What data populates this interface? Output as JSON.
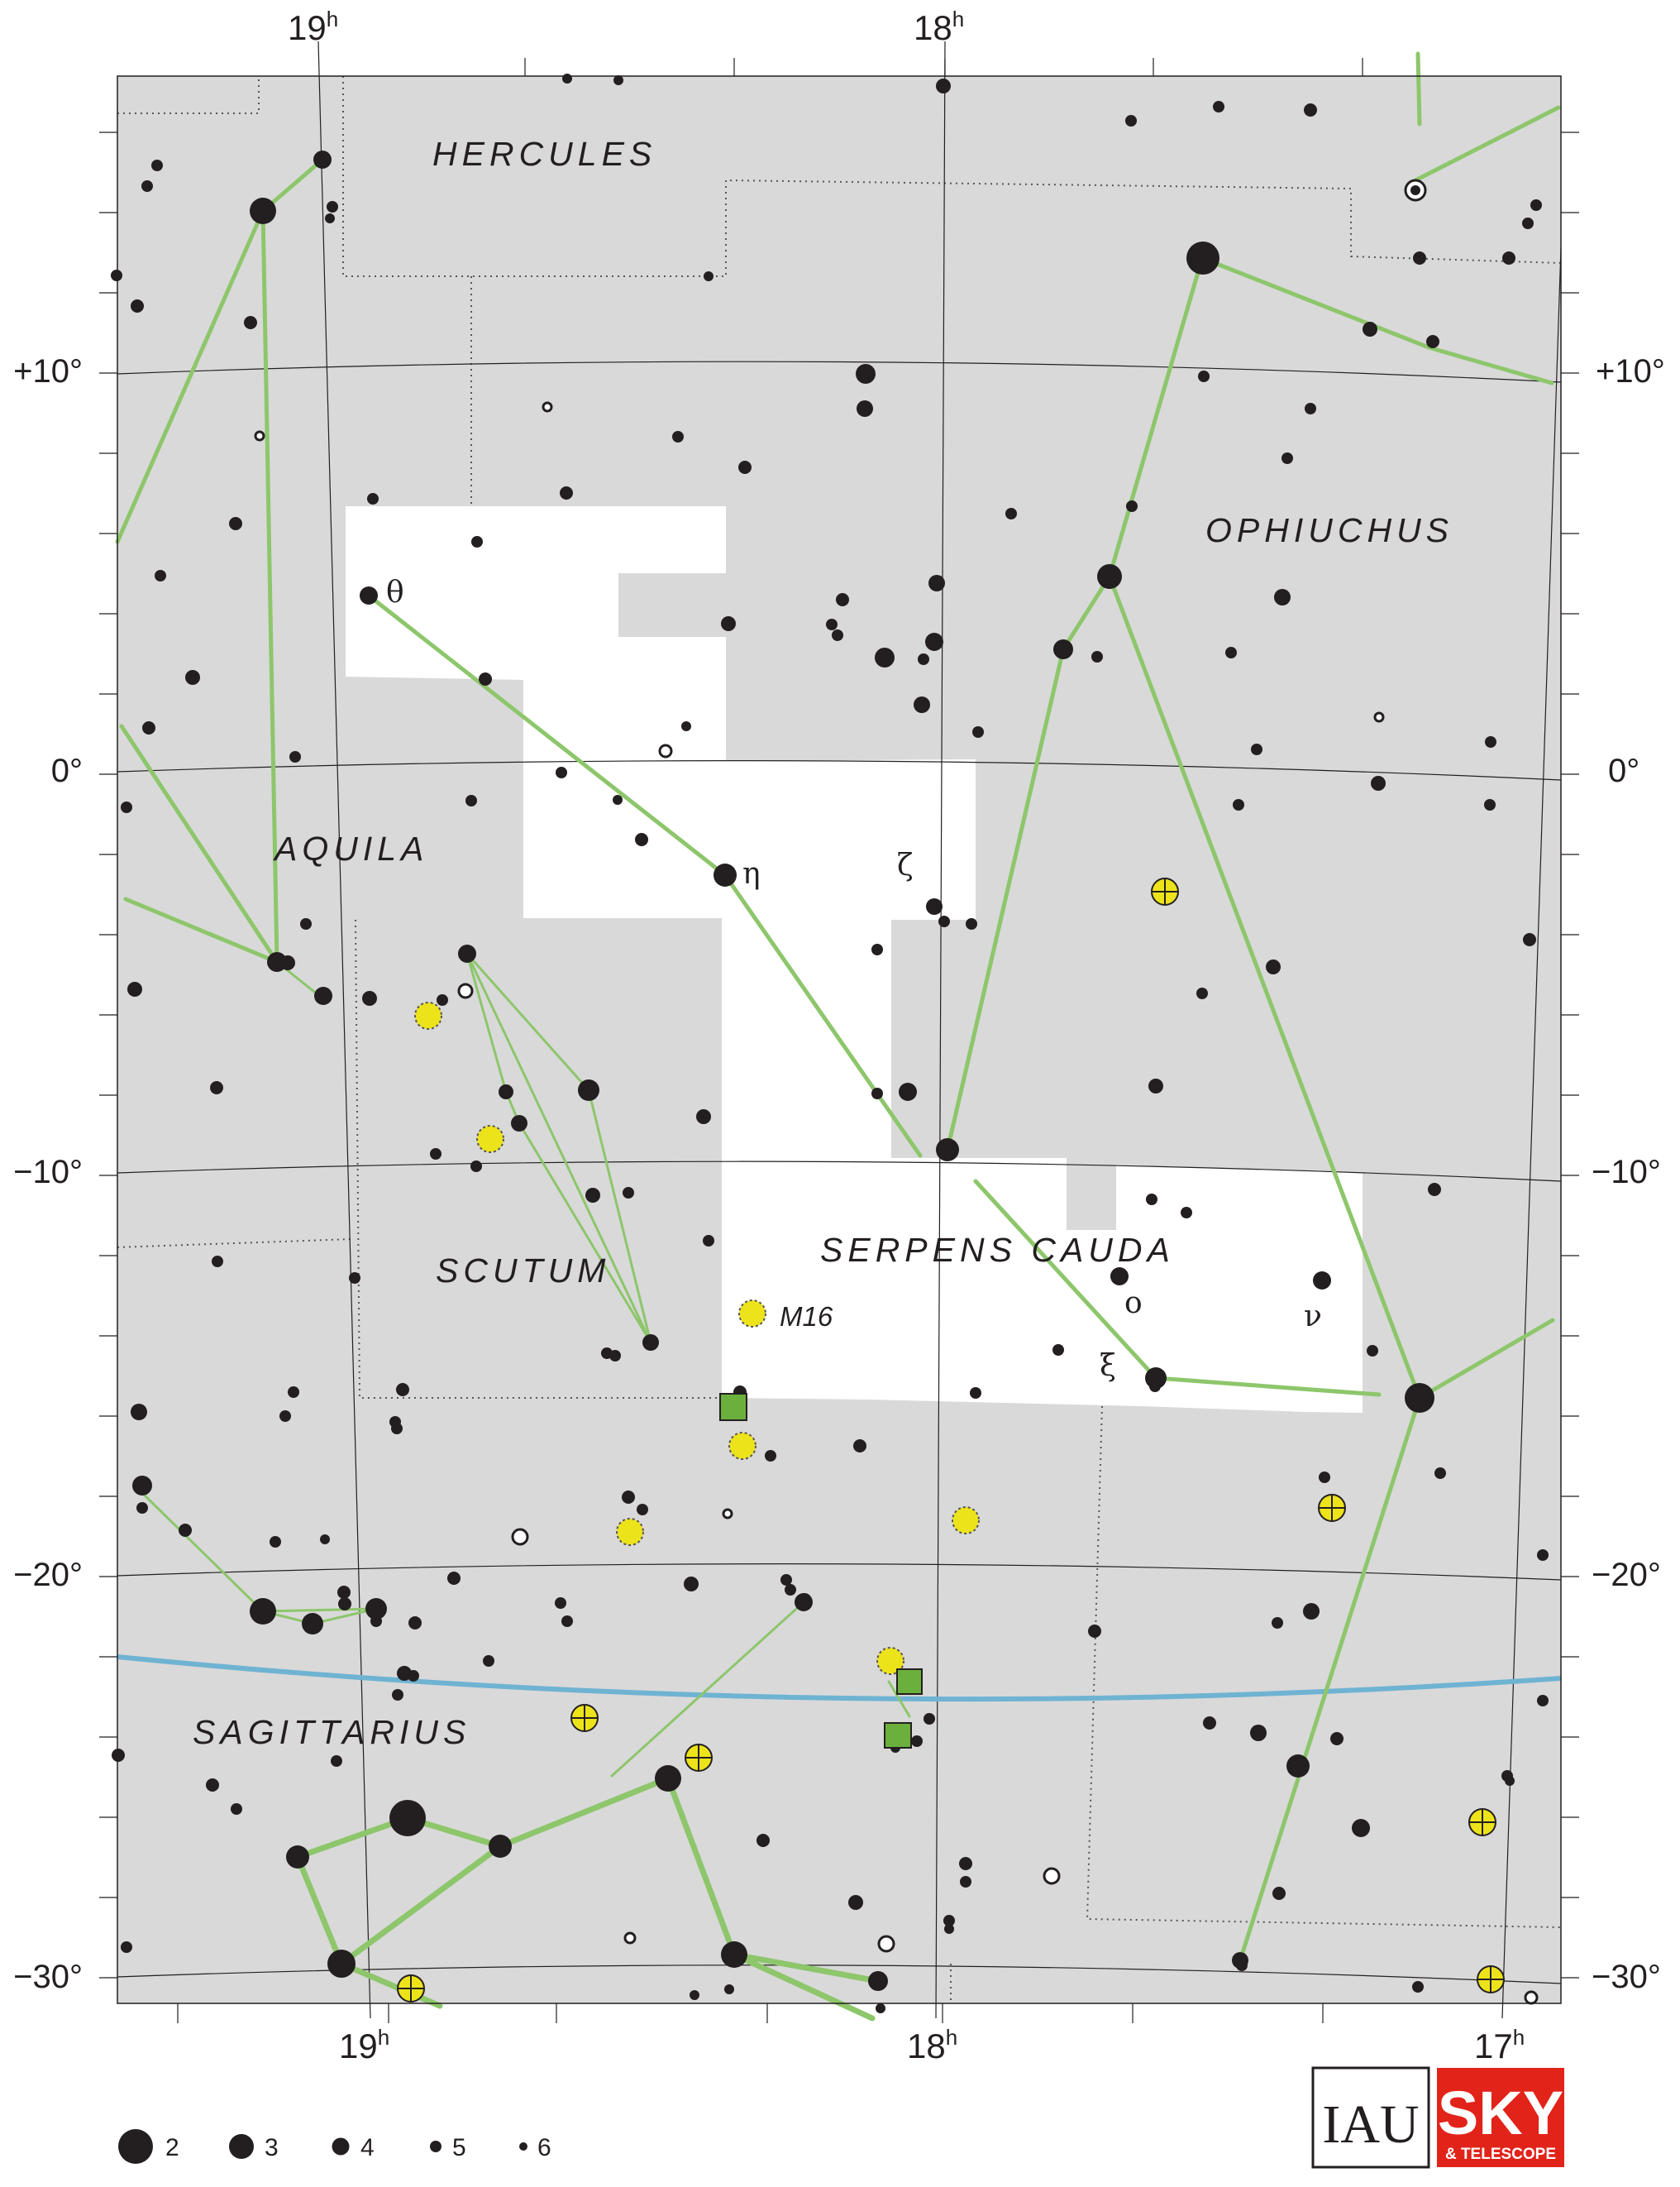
{
  "ra_labels": {
    "top": [
      {
        "h": "19",
        "sup": "h"
      },
      {
        "h": "18",
        "sup": "h"
      }
    ],
    "bottom": [
      {
        "h": "19",
        "sup": "h"
      },
      {
        "h": "18",
        "sup": "h"
      },
      {
        "h": "17",
        "sup": "h"
      }
    ]
  },
  "dec_labels": [
    "+10°",
    "0°",
    "−10°",
    "−20°",
    "−30°"
  ],
  "constellations": {
    "hercules": "HERCULES",
    "ophiuchus": "OPHIUCHUS",
    "aquila": "AQUILA",
    "scutum": "SCUTUM",
    "serpens_cauda": "SERPENS CAUDA",
    "sagittarius": "SAGITTARIUS"
  },
  "star_labels": {
    "theta": "θ",
    "eta": "η",
    "zeta": "ζ",
    "omicron": "o",
    "nu": "ν",
    "xi": "ξ"
  },
  "object_labels": {
    "m16": "M16"
  },
  "magnitude_legend": [
    "2",
    "3",
    "4",
    "5",
    "6"
  ],
  "logos": {
    "iau": "IAU",
    "sky": "SKY",
    "telescope": "& TELESCOPE"
  },
  "colors": {
    "background": "#d9d9d9",
    "highlight": "#ffffff",
    "stick_figure": "#8dc66b",
    "ecliptic": "#6fb3d2",
    "star": "#231f20",
    "cluster": "#ede31b",
    "nebula": "#6bb03c",
    "logo_red": "#e2231a"
  }
}
